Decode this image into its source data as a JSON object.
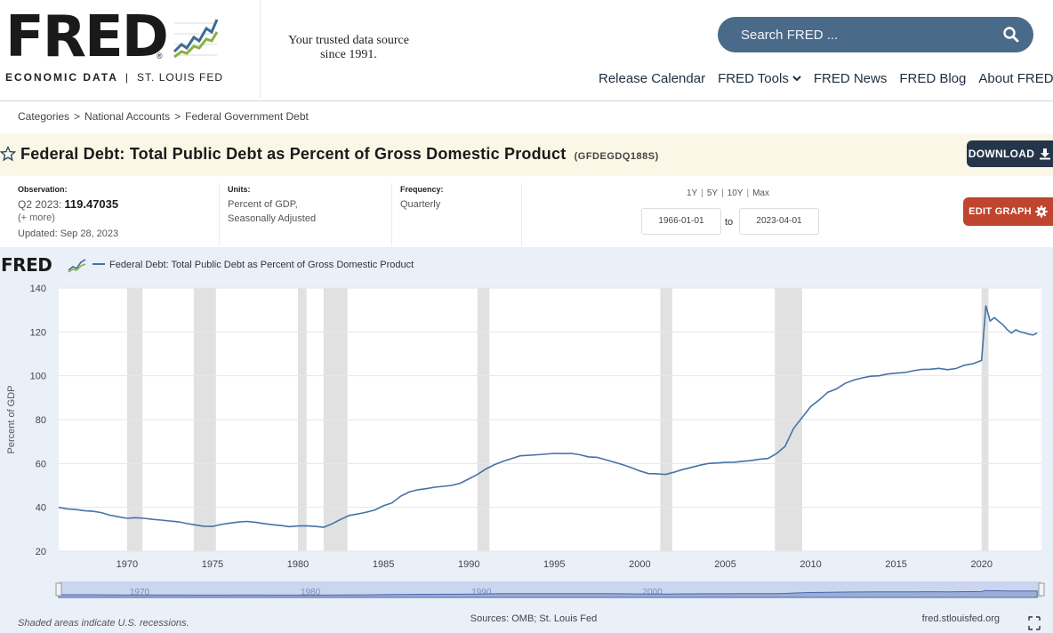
{
  "header": {
    "logo_text": "FRED",
    "logo_reg": "®",
    "logo_sub_left": "ECONOMIC DATA",
    "logo_sub_sep": "|",
    "logo_sub_right": "ST. LOUIS FED",
    "tagline_line1": "Your trusted data source",
    "tagline_line2": "since 1991.",
    "search_placeholder": "Search FRED ...",
    "nav": [
      {
        "label": "Release Calendar",
        "dropdown": false
      },
      {
        "label": "FRED Tools",
        "dropdown": true
      },
      {
        "label": "FRED News",
        "dropdown": false
      },
      {
        "label": "FRED Blog",
        "dropdown": false
      },
      {
        "label": "About FRED",
        "dropdown": true
      }
    ]
  },
  "breadcrumb": [
    "Categories",
    "National Accounts",
    "Federal Government Debt"
  ],
  "breadcrumb_sep": ">",
  "series": {
    "title": "Federal Debt: Total Public Debt as Percent of Gross Domestic Product",
    "code": "(GFDEGDQ188S)",
    "download_label": "DOWNLOAD",
    "edit_label": "EDIT GRAPH"
  },
  "meta": {
    "observation_label": "Observation:",
    "observation_period": "Q2 2023:",
    "observation_value": "119.47035",
    "observation_more": "(+ more)",
    "updated": "Updated: Sep 28, 2023",
    "units_label": "Units:",
    "units_line1": "Percent of GDP,",
    "units_line2": "Seasonally Adjusted",
    "frequency_label": "Frequency:",
    "frequency": "Quarterly",
    "range_links": [
      "1Y",
      "5Y",
      "10Y",
      "Max"
    ],
    "range_sep": "|",
    "date_start": "1966-01-01",
    "date_to": "to",
    "date_end": "2023-04-01"
  },
  "graph": {
    "legend_logo": "FRED",
    "legend_dash": "—",
    "legend_series": "Federal Debt: Total Public Debt as Percent of Gross Domestic Product",
    "footer_left": "Shaded areas indicate U.S. recessions.",
    "footer_center": "Sources: OMB; St. Louis Fed",
    "footer_right": "fred.stlouisfed.org",
    "colors": {
      "line": "#4572a7",
      "recession": "#e1e1e1",
      "background": "#eaf0f8",
      "plot": "#ffffff"
    }
  },
  "chart_data": {
    "type": "line",
    "title": "",
    "xlabel": "",
    "ylabel": "Percent of GDP",
    "xlim": [
      1966,
      2023.5
    ],
    "ylim": [
      20,
      140
    ],
    "y_ticks": [
      20,
      40,
      60,
      80,
      100,
      120,
      140
    ],
    "x_ticks": [
      1970,
      1975,
      1980,
      1985,
      1990,
      1995,
      2000,
      2005,
      2010,
      2015,
      2020
    ],
    "navigator_ticks": [
      1970,
      1980,
      1990,
      2000
    ],
    "grid": "horizontal",
    "recessions": [
      [
        1970.0,
        1970.9
      ],
      [
        1973.9,
        1975.2
      ],
      [
        1980.0,
        1980.5
      ],
      [
        1981.5,
        1982.9
      ],
      [
        1990.5,
        1991.2
      ],
      [
        2001.2,
        2001.9
      ],
      [
        2007.9,
        2009.5
      ],
      [
        2020.0,
        2020.4
      ]
    ],
    "series": [
      {
        "name": "Federal Debt: Total Public Debt as Percent of Gross Domestic Product",
        "x": [
          1966.0,
          1966.5,
          1967.0,
          1967.5,
          1968.0,
          1968.5,
          1969.0,
          1969.5,
          1970.0,
          1970.5,
          1971.0,
          1971.5,
          1972.0,
          1972.5,
          1973.0,
          1973.5,
          1974.0,
          1974.5,
          1975.0,
          1975.5,
          1976.0,
          1976.5,
          1977.0,
          1977.5,
          1978.0,
          1978.5,
          1979.0,
          1979.5,
          1980.0,
          1980.5,
          1981.0,
          1981.5,
          1982.0,
          1982.5,
          1983.0,
          1983.5,
          1984.0,
          1984.5,
          1985.0,
          1985.5,
          1986.0,
          1986.5,
          1987.0,
          1987.5,
          1988.0,
          1988.5,
          1989.0,
          1989.5,
          1990.0,
          1990.5,
          1991.0,
          1991.5,
          1992.0,
          1993.0,
          1994.0,
          1995.0,
          1995.5,
          1996.0,
          1996.5,
          1997.0,
          1997.5,
          1998.0,
          1998.5,
          1999.0,
          1999.5,
          2000.0,
          2000.5,
          2001.0,
          2001.5,
          2002.0,
          2002.5,
          2003.0,
          2003.5,
          2004.0,
          2004.5,
          2005.0,
          2005.5,
          2006.0,
          2006.5,
          2007.0,
          2007.5,
          2008.0,
          2008.5,
          2009.0,
          2009.5,
          2010.0,
          2010.5,
          2011.0,
          2011.5,
          2012.0,
          2012.5,
          2013.0,
          2013.5,
          2014.0,
          2014.5,
          2015.0,
          2015.5,
          2016.0,
          2016.5,
          2017.0,
          2017.5,
          2018.0,
          2018.5,
          2019.0,
          2019.5,
          2020.0,
          2020.25,
          2020.5,
          2020.75,
          2021.0,
          2021.25,
          2021.5,
          2021.75,
          2022.0,
          2022.25,
          2022.5,
          2022.75,
          2023.0,
          2023.25
        ],
        "values": [
          40.0,
          39.3,
          39.0,
          38.5,
          38.2,
          37.6,
          36.4,
          35.7,
          35.0,
          35.3,
          35.0,
          34.5,
          34.2,
          33.8,
          33.4,
          32.6,
          32.0,
          31.4,
          31.3,
          32.2,
          32.8,
          33.3,
          33.6,
          33.2,
          32.6,
          32.1,
          31.7,
          31.2,
          31.5,
          31.6,
          31.3,
          30.9,
          32.5,
          34.5,
          36.3,
          37.0,
          37.8,
          38.8,
          40.7,
          42.0,
          45.0,
          47.0,
          48.0,
          48.5,
          49.2,
          49.6,
          50.0,
          51.0,
          53.0,
          55.0,
          57.5,
          59.5,
          61.0,
          63.5,
          64.0,
          64.6,
          64.5,
          64.6,
          64.0,
          63.0,
          62.8,
          61.7,
          60.6,
          59.5,
          58.1,
          56.6,
          55.4,
          55.3,
          55.0,
          56.0,
          57.2,
          58.2,
          59.2,
          60.0,
          60.2,
          60.5,
          60.6,
          61.0,
          61.3,
          61.9,
          62.3,
          64.5,
          67.8,
          76.0,
          81.0,
          86.0,
          89.0,
          92.5,
          94.0,
          96.5,
          98.0,
          99.0,
          99.8,
          100.0,
          100.8,
          101.2,
          101.5,
          102.3,
          102.9,
          103.0,
          103.4,
          102.8,
          103.3,
          104.8,
          105.5,
          107.0,
          132.0,
          125.0,
          126.5,
          124.8,
          123.2,
          121.0,
          119.5,
          121.0,
          120.0,
          119.6,
          119.0,
          118.6,
          119.47
        ]
      }
    ]
  }
}
